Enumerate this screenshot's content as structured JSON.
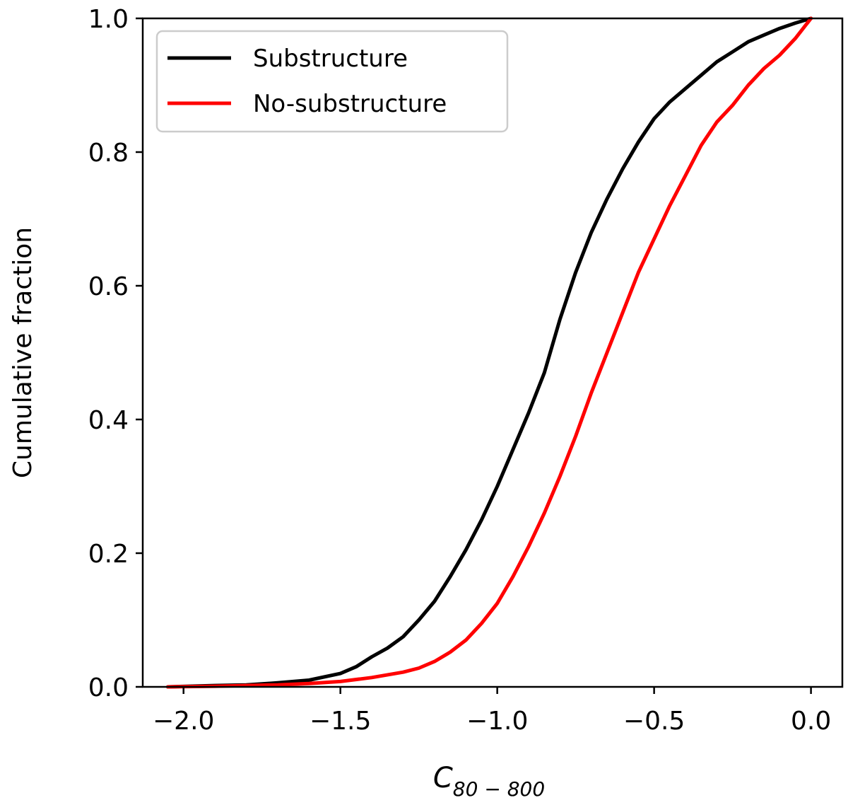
{
  "chart_data": {
    "type": "line",
    "xlabel": "C",
    "xlabel_subscript": "80 − 800",
    "ylabel": "Cumulative fraction",
    "xlim": [
      -2.13,
      0.1
    ],
    "ylim": [
      0.0,
      1.0
    ],
    "x_ticks": [
      -2.0,
      -1.5,
      -1.0,
      -0.5,
      0.0
    ],
    "x_tick_labels": [
      "−2.0",
      "−1.5",
      "−1.0",
      "−0.5",
      "0.0"
    ],
    "y_ticks": [
      0.0,
      0.2,
      0.4,
      0.6,
      0.8,
      1.0
    ],
    "y_tick_labels": [
      "0.0",
      "0.2",
      "0.4",
      "0.6",
      "0.8",
      "1.0"
    ],
    "grid": false,
    "legend_position": "top-left",
    "series": [
      {
        "name": "Substructure",
        "color": "#000000",
        "x": [
          -2.05,
          -1.9,
          -1.8,
          -1.7,
          -1.6,
          -1.5,
          -1.45,
          -1.4,
          -1.35,
          -1.3,
          -1.25,
          -1.2,
          -1.15,
          -1.1,
          -1.05,
          -1.0,
          -0.95,
          -0.9,
          -0.85,
          -0.8,
          -0.75,
          -0.7,
          -0.65,
          -0.6,
          -0.55,
          -0.5,
          -0.45,
          -0.4,
          -0.35,
          -0.3,
          -0.25,
          -0.2,
          -0.15,
          -0.1,
          -0.05,
          0.0
        ],
        "y": [
          0.0,
          0.002,
          0.003,
          0.006,
          0.01,
          0.02,
          0.03,
          0.045,
          0.058,
          0.075,
          0.1,
          0.128,
          0.165,
          0.205,
          0.25,
          0.3,
          0.355,
          0.41,
          0.47,
          0.55,
          0.62,
          0.68,
          0.73,
          0.775,
          0.815,
          0.85,
          0.875,
          0.895,
          0.915,
          0.935,
          0.95,
          0.965,
          0.975,
          0.985,
          0.993,
          1.0
        ]
      },
      {
        "name": "No-substructure",
        "color": "#ff0000",
        "x": [
          -2.05,
          -1.9,
          -1.8,
          -1.7,
          -1.6,
          -1.5,
          -1.4,
          -1.3,
          -1.25,
          -1.2,
          -1.15,
          -1.1,
          -1.05,
          -1.0,
          -0.95,
          -0.9,
          -0.85,
          -0.8,
          -0.75,
          -0.7,
          -0.65,
          -0.6,
          -0.55,
          -0.5,
          -0.45,
          -0.4,
          -0.35,
          -0.3,
          -0.25,
          -0.2,
          -0.15,
          -0.1,
          -0.05,
          0.0
        ],
        "y": [
          0.0,
          0.001,
          0.002,
          0.003,
          0.005,
          0.008,
          0.014,
          0.022,
          0.028,
          0.038,
          0.052,
          0.07,
          0.095,
          0.125,
          0.165,
          0.21,
          0.26,
          0.315,
          0.375,
          0.44,
          0.5,
          0.56,
          0.62,
          0.67,
          0.72,
          0.765,
          0.81,
          0.845,
          0.87,
          0.9,
          0.925,
          0.945,
          0.97,
          1.0
        ]
      }
    ]
  }
}
